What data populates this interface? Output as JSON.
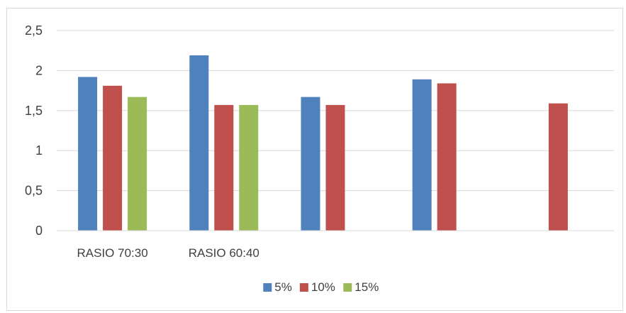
{
  "chart_data": {
    "type": "bar",
    "categories": [
      "RASIO 70:30",
      "RASIO 60:40",
      "",
      "",
      ""
    ],
    "series": [
      {
        "name": "5%",
        "color": "#4f81bd",
        "values": [
          1.92,
          2.19,
          1.67,
          1.89,
          null
        ]
      },
      {
        "name": "10%",
        "color": "#c0504d",
        "values": [
          1.81,
          1.57,
          1.57,
          1.84,
          1.59
        ]
      },
      {
        "name": "15%",
        "color": "#9bbb59",
        "values": [
          1.67,
          1.57,
          null,
          null,
          null
        ]
      }
    ],
    "yticks": [
      "0",
      "0,5",
      "1",
      "1,5",
      "2",
      "2,5"
    ],
    "ylim": [
      0,
      2.5
    ],
    "grid": true,
    "legend_position": "bottom-center",
    "title": "",
    "xlabel": "",
    "ylabel": ""
  }
}
